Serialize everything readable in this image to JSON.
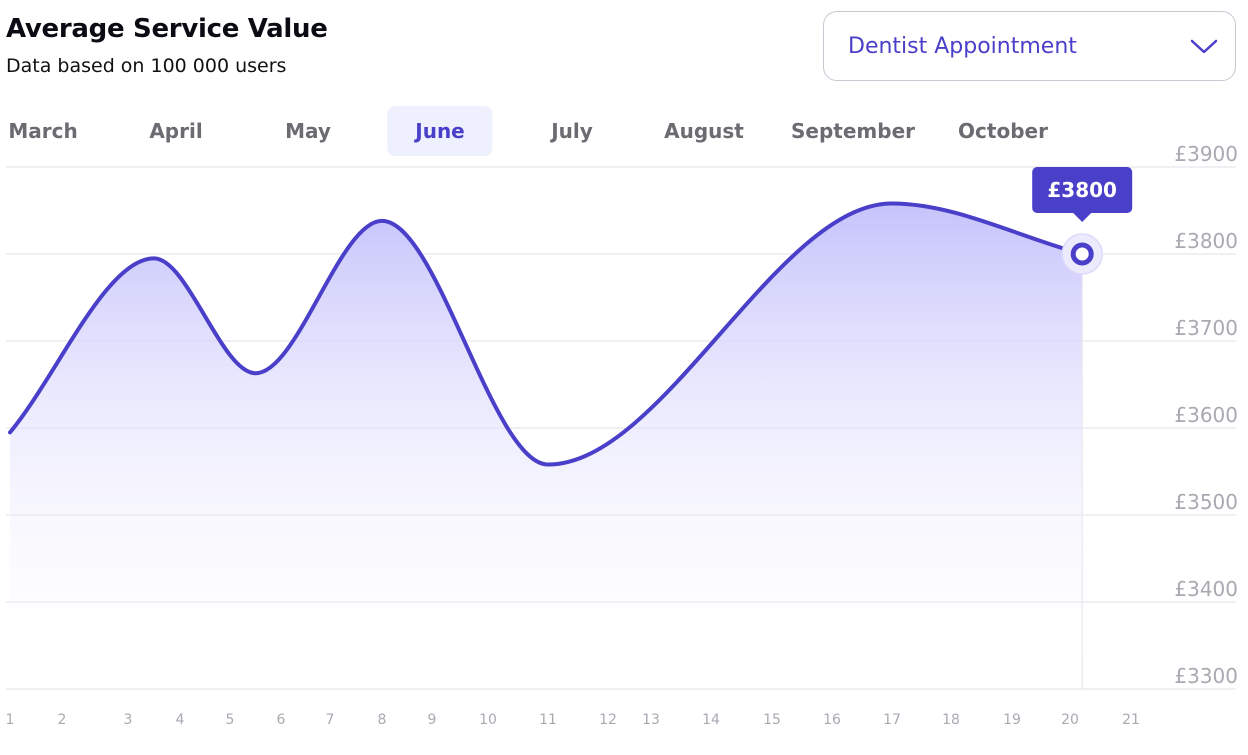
{
  "header": {
    "title": "Average Service Value",
    "subtitle": "Data based on 100 000 users"
  },
  "service_select": {
    "value": "Dentist Appointment"
  },
  "months": [
    {
      "label": "March"
    },
    {
      "label": "April"
    },
    {
      "label": "May"
    },
    {
      "label": "June",
      "active": true
    },
    {
      "label": "July"
    },
    {
      "label": "August"
    },
    {
      "label": "September"
    },
    {
      "label": "October"
    }
  ],
  "colors": {
    "accent": "#4a3fc9",
    "fill_top": "#c5c3fb",
    "grid": "#e8e8ee",
    "muted_text": "#a9a9b2"
  },
  "tooltip": {
    "label": "£3800"
  },
  "chart_data": {
    "type": "area",
    "ylim": [
      3300,
      3900
    ],
    "y_ticks": [
      {
        "value": 3900,
        "label": "£3900"
      },
      {
        "value": 3800,
        "label": "£3800"
      },
      {
        "value": 3700,
        "label": "£3700"
      },
      {
        "value": 3600,
        "label": "£3600"
      },
      {
        "value": 3500,
        "label": "£3500"
      },
      {
        "value": 3400,
        "label": "£3400"
      },
      {
        "value": 3300,
        "label": "£3300"
      }
    ],
    "x_ticks": [
      "1",
      "2",
      "3",
      "4",
      "5",
      "6",
      "7",
      "8",
      "9",
      "10",
      "11",
      "12",
      "13",
      "14",
      "15",
      "16",
      "17",
      "18",
      "19",
      "20",
      "21"
    ],
    "series": [
      {
        "points": [
          {
            "x": 1,
            "y": 3595
          },
          {
            "x": 3.5,
            "y": 3795
          },
          {
            "x": 5.5,
            "y": 3663
          },
          {
            "x": 8,
            "y": 3838
          },
          {
            "x": 11,
            "y": 3558
          },
          {
            "x": 17,
            "y": 3858
          },
          {
            "x": 20.2,
            "y": 3800
          }
        ]
      }
    ],
    "highlight": {
      "x": 20.2,
      "y": 3800
    },
    "grid": true,
    "y_axis_position": "right"
  }
}
